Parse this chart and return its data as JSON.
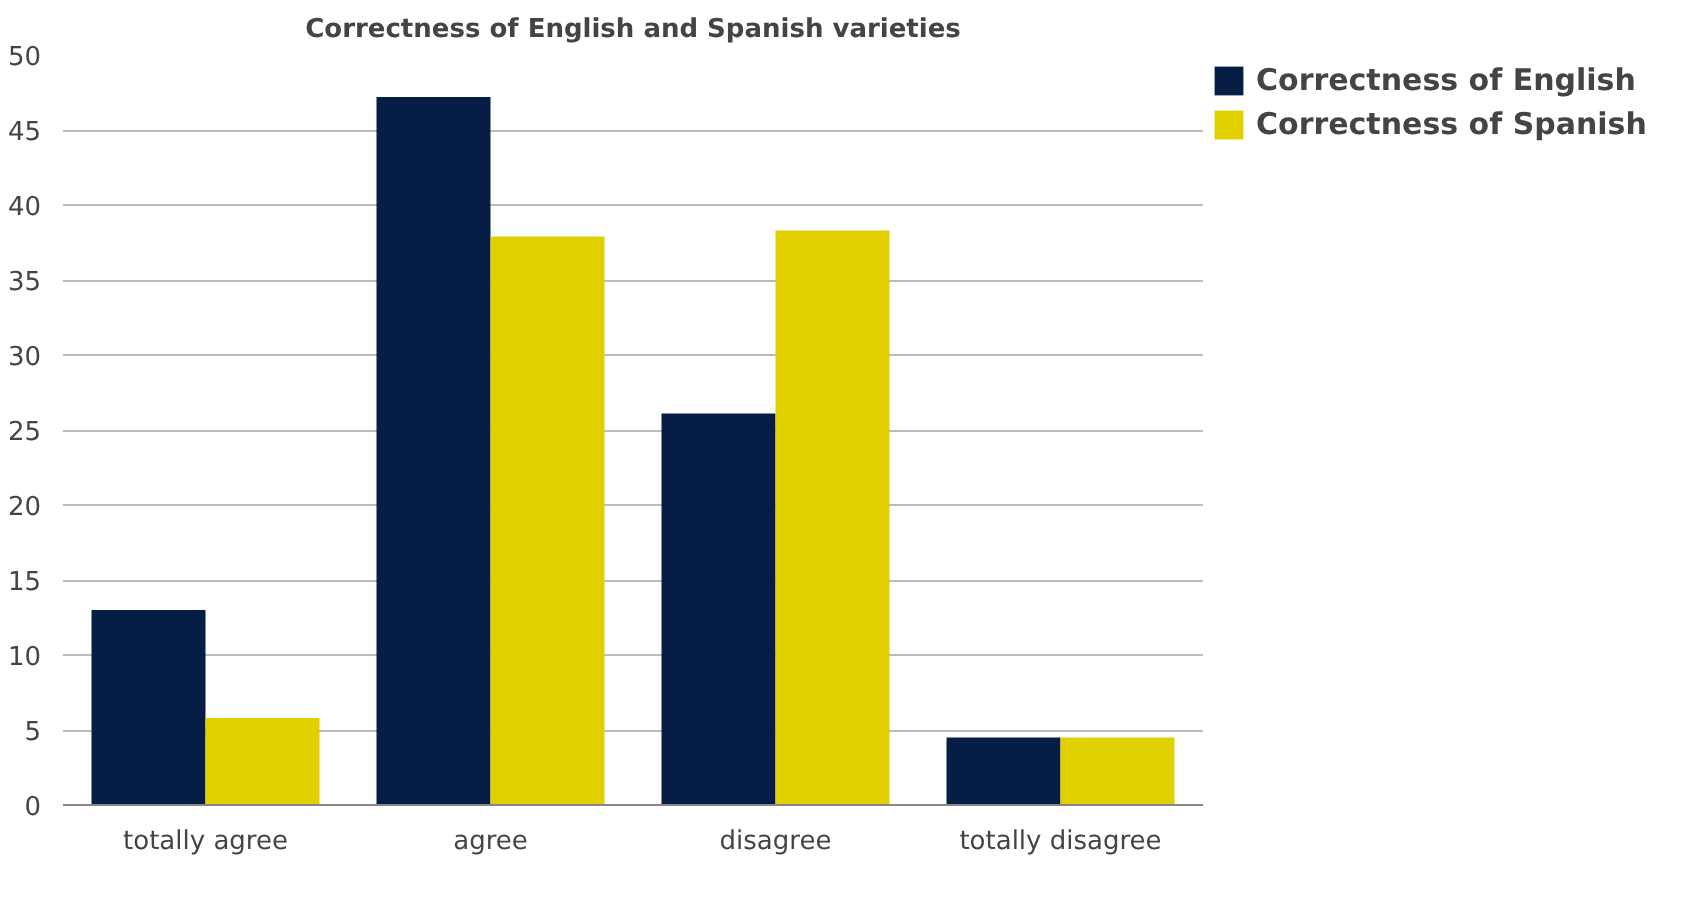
{
  "chart_data": {
    "type": "bar",
    "title": "Correctness of English and Spanish varieties",
    "categories": [
      "totally agree",
      "agree",
      "disagree",
      "totally disagree"
    ],
    "series": [
      {
        "name": "Correctness of English",
        "color": "#061e45",
        "values": [
          13,
          47.2,
          26.1,
          4.5
        ]
      },
      {
        "name": "Correctness of Spanish",
        "color": "#e0d000",
        "values": [
          5.8,
          37.9,
          38.3,
          4.5
        ]
      }
    ],
    "ylim": [
      0,
      50
    ],
    "yticks": [
      0,
      5,
      10,
      15,
      20,
      25,
      30,
      35,
      40,
      45,
      50
    ],
    "grid": "y",
    "legend": "top right"
  }
}
